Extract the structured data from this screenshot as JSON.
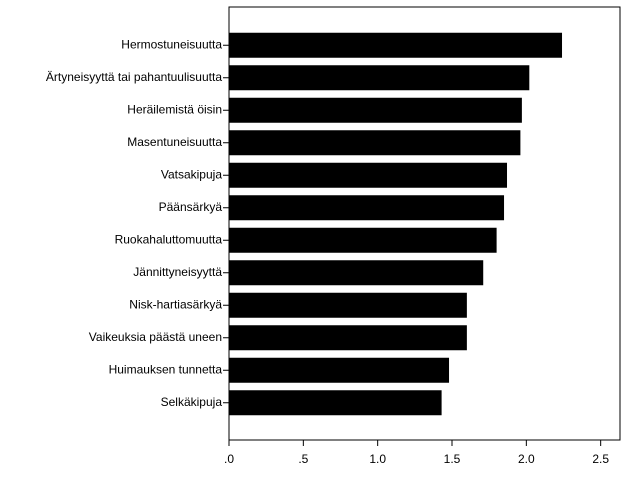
{
  "chart_data": {
    "type": "bar",
    "orientation": "horizontal",
    "color": "#000000",
    "categories": [
      "Hermostuneisuutta",
      "Ärtyneisyyttä tai pahantuulisuutta",
      "Heräilemistä öisin",
      "Masentuneisuutta",
      "Vatsakipuja",
      "Päänsärkyä",
      "Ruokahaluttomuutta",
      "Jännittyneisyyttä",
      "Nisk-hartiasärkyä",
      "Vaikeuksia päästä uneen",
      "Huimauksen tunnetta",
      "Selkäkipuja"
    ],
    "values": [
      2.24,
      2.02,
      1.97,
      1.96,
      1.87,
      1.85,
      1.8,
      1.71,
      1.6,
      1.6,
      1.48,
      1.43
    ],
    "xlim": [
      0,
      2.63
    ],
    "xticks": [
      {
        "value": 0,
        "label": ".0"
      },
      {
        "value": 0.5,
        "label": ".5"
      },
      {
        "value": 1,
        "label": "1.0"
      },
      1.5,
      {
        "value": 2,
        "label": "2.0"
      },
      2.5
    ]
  }
}
